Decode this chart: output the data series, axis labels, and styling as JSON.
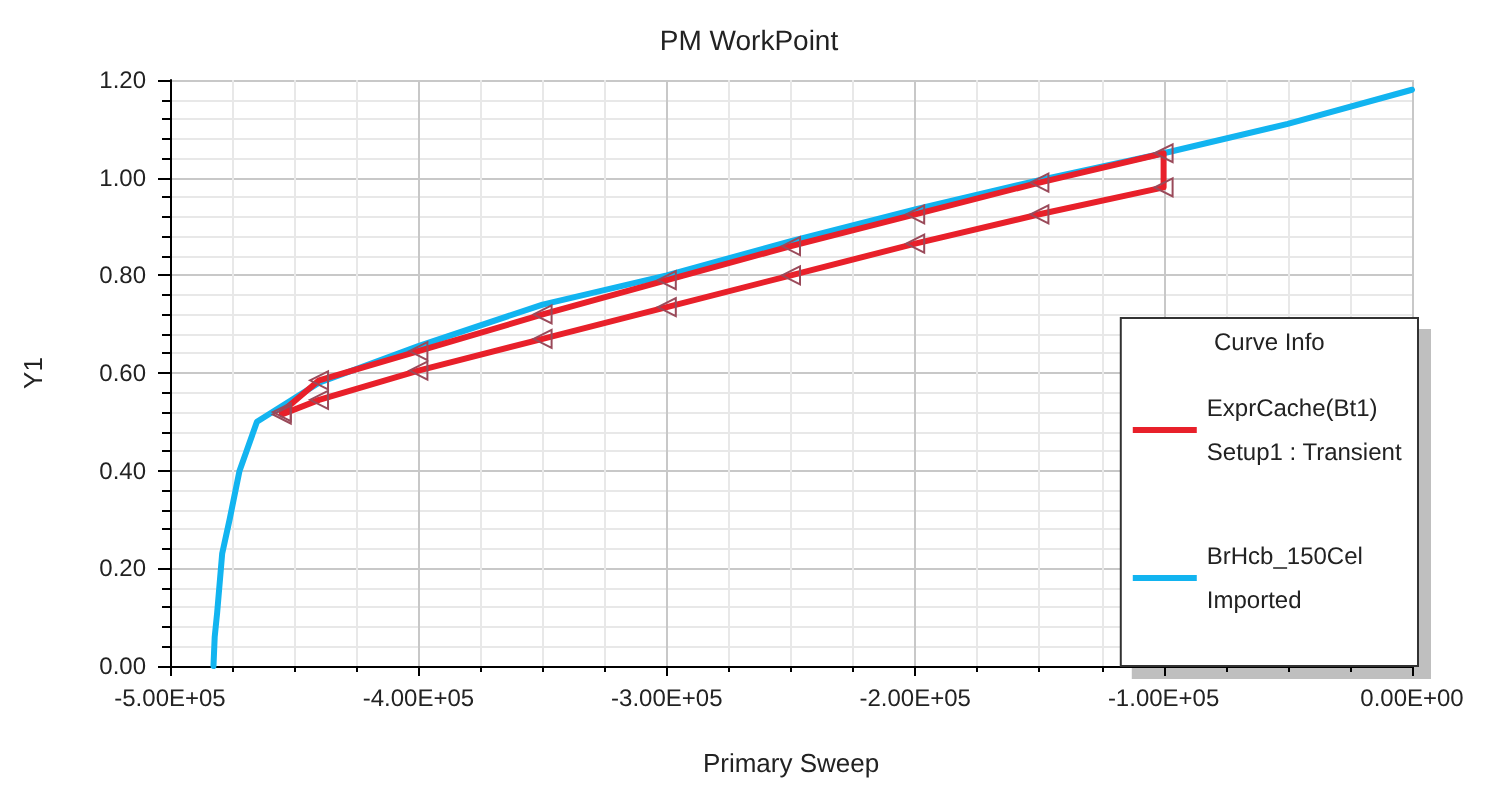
{
  "chart_data": {
    "type": "line",
    "title": "PM WorkPoint",
    "xlabel": "Primary Sweep",
    "ylabel": "Y1",
    "legend_title": "Curve Info",
    "legend": "bottom right",
    "grid": true,
    "xlim": [
      -500000,
      0
    ],
    "xticks": [
      {
        "value": -500000,
        "label": "-5.00E+05"
      },
      {
        "value": -400000,
        "label": "-4.00E+05"
      },
      {
        "value": -300000,
        "label": "-3.00E+05"
      },
      {
        "value": -200000,
        "label": "-2.00E+05"
      },
      {
        "value": -100000,
        "label": "-1.00E+05"
      },
      {
        "value": 0,
        "label": "0.00E+00"
      }
    ],
    "ylim": [
      0,
      1.2
    ],
    "yticks": [
      {
        "value": 0,
        "label": "0.00"
      },
      {
        "value": 0.2,
        "label": "0.20"
      },
      {
        "value": 0.4,
        "label": "0.40"
      },
      {
        "value": 0.6,
        "label": "0.60"
      },
      {
        "value": 0.8,
        "label": "0.80"
      },
      {
        "value": 1.0,
        "label": "1.00"
      },
      {
        "value": 1.2,
        "label": "1.20"
      }
    ],
    "series": [
      {
        "name": "ExprCache(Bt1)\nSetup1 : Transient",
        "color": "#e8202a",
        "marker": "triangle",
        "x": [
          -455000,
          -440000,
          -400000,
          -350000,
          -300000,
          -250000,
          -200000,
          -150000,
          -100000,
          -100000,
          -150000,
          -200000,
          -250000,
          -300000,
          -350000,
          -400000,
          -440000,
          -455000
        ],
        "values": [
          0.52,
          0.585,
          0.645,
          0.72,
          0.79,
          0.86,
          0.925,
          0.99,
          1.05,
          0.98,
          0.925,
          0.865,
          0.8,
          0.735,
          0.67,
          0.605,
          0.545,
          0.515
        ]
      },
      {
        "name": "BrHcb_150Cel\nImported",
        "color": "#12b4f0",
        "marker": "none",
        "x": [
          -482500,
          -482000,
          -481000,
          -479000,
          -476000,
          -472000,
          -465000,
          -440000,
          -400000,
          -350000,
          -300000,
          -250000,
          -200000,
          -150000,
          -100000,
          -50000,
          0
        ],
        "values": [
          0,
          0.06,
          0.11,
          0.23,
          0.3,
          0.4,
          0.5,
          0.58,
          0.655,
          0.74,
          0.8,
          0.87,
          0.935,
          0.995,
          1.05,
          1.11,
          1.18
        ]
      }
    ]
  }
}
